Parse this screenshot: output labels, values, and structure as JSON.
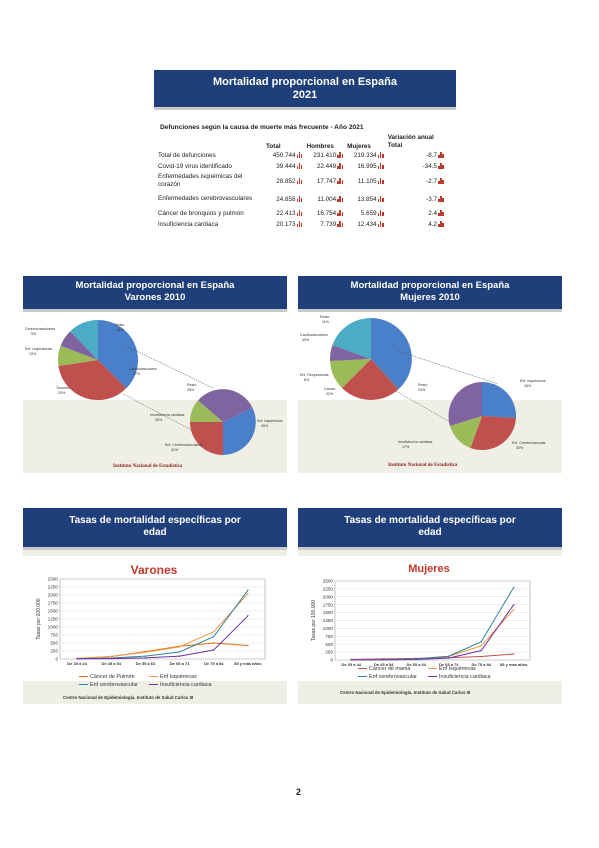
{
  "colors": {
    "header_blue": "#1f3f7a",
    "pie_blue": "#4a7fc9",
    "pie_red": "#c0504d",
    "pie_green": "#9bbb59",
    "pie_purple": "#8064a2",
    "pie_cyan": "#4bacc6",
    "accent_red": "#c0392b"
  },
  "slide1": {
    "title_line1": "Mortalidad proporcional en España",
    "title_line2": "2021",
    "subtitle": "Defunciones según la causa de muerte más frecuente - Año 2021",
    "headers": {
      "total": "Total",
      "men": "Hombres",
      "women": "Mujeres",
      "variation_1": "Variación anual",
      "variation_2": "Total"
    },
    "rows": [
      {
        "cause": "Total de defunciones",
        "total": "450.744",
        "men": "231.410",
        "women": "219.334",
        "var": "-8.7"
      },
      {
        "cause": "Covid-19 virus identificado",
        "total": "39.444",
        "men": "22.449",
        "women": "16.995",
        "var": "-34.5"
      },
      {
        "cause": "Enfermedades isquémicas del corazón",
        "total": "28.852",
        "men": "17.747",
        "women": "11.105",
        "var": "-2.7"
      },
      {
        "cause": "Enfermedades cerebrovasculares",
        "total": "24.858",
        "men": "11.004",
        "women": "13.854",
        "var": "-3.7"
      },
      {
        "cause": "Cáncer de bronquios y pulmón",
        "total": "22.413",
        "men": "16.754",
        "women": "5.659",
        "var": "2.4"
      },
      {
        "cause": "Insuficiencia cardiaca",
        "total": "20.173",
        "men": "7.739",
        "women": "12.434",
        "var": "4.2"
      }
    ]
  },
  "slide2": {
    "title_line1": "Mortalidad proporcional en España",
    "title_line2": "Varones 2010",
    "source": "Instituto Nacional de Estadística",
    "main_labels": {
      "resto": "Resto",
      "cardio": "Cardiovasculares",
      "tumores": "Tumores",
      "resp": "Enf. respiratorias",
      "cerebro": "Cerebrovasculares"
    },
    "main_values": {
      "resto": "11%",
      "cardio": "37%",
      "tumores": "33%",
      "resp": "10%",
      "cerebro": "9%"
    },
    "sub_labels": {
      "resto": "Resto",
      "isq": "Enf. isquémicas",
      "cvasc": "Enf. Cerebrovasculares",
      "insuf": "Insuficiencia cardiaca"
    },
    "sub_values": {
      "resto": "26%",
      "isq": "40%",
      "cvasc": "31%",
      "insuf": "26%"
    }
  },
  "slide3": {
    "title_line1": "Mortalidad proporcional en España",
    "title_line2": "Mujeres 2010",
    "source": "Instituto Nacional de Estadística",
    "main_labels": {
      "resto": "Resto",
      "cardio": "Cardiovasculares",
      "resp": "Enf. Respiratorias",
      "cancer": "Cancer"
    },
    "main_values": {
      "resto": "11%",
      "cardio": "45%",
      "resp": "8%",
      "cancer": "22%"
    },
    "sub_labels": {
      "resto": "Resto",
      "isq": "Enf. Isquémicas",
      "insuf": "Insuficiencia cardiaca",
      "cvasc": "Enf. Cerebrovascular"
    },
    "sub_values": {
      "resto": "34%",
      "isq": "28%",
      "insuf": "17%",
      "cvasc": "30%"
    }
  },
  "slide4": {
    "title_line1": "Tasas de mortalidad específicas por",
    "title_line2": "edad",
    "source": "Centro Nacional de Epidemiología. Instituto de Salud Carlos III"
  },
  "slide5": {
    "title_line1": "Tasas de mortalidad específicas por",
    "title_line2": "edad",
    "source": "Centro Nacional de Epidemiología. Instituto de Salud Carlos III"
  },
  "page_number": "2",
  "chart_data": [
    {
      "type": "line",
      "title": "Varones",
      "ylabel": "Tasas por 100.000",
      "categories": [
        "De 35 a 44",
        "De 45 a 54",
        "De 55 a 64",
        "De 65 a 74",
        "De 75 a 84",
        "85 y más años"
      ],
      "ylim": [
        0,
        2500
      ],
      "yticks": [
        "0",
        "250",
        "500",
        "750",
        "1000",
        "1250",
        "1500",
        "1750",
        "2000",
        "2250",
        "2500"
      ],
      "series": [
        {
          "name": "Cáncer de Pulmón",
          "color": "#e46c0a",
          "values": [
            15,
            80,
            230,
            400,
            500,
            420
          ]
        },
        {
          "name": "Enf Isquémicas",
          "color": "#f79646",
          "values": [
            20,
            80,
            210,
            380,
            850,
            2050
          ]
        },
        {
          "name": "Enf cerebrovascular",
          "color": "#31869b",
          "values": [
            8,
            30,
            90,
            220,
            700,
            2150
          ]
        },
        {
          "name": "Insuficiencia cardiaca",
          "color": "#7030a0",
          "values": [
            3,
            10,
            35,
            90,
            280,
            1350
          ]
        }
      ]
    },
    {
      "type": "line",
      "title": "Mujeres",
      "ylabel": "Tasas por 100.000",
      "categories": [
        "De 35 a 44",
        "De 45 a 54",
        "De 55 a 64",
        "De 65 a 74",
        "De 75 a 84",
        "85 y más años"
      ],
      "ylim": [
        0,
        2500
      ],
      "yticks": [
        "0",
        "250",
        "500",
        "750",
        "1000",
        "1250",
        "1500",
        "1750",
        "2000",
        "2250",
        "2500"
      ],
      "series": [
        {
          "name": "Cáncer de mama",
          "color": "#c0504d",
          "values": [
            20,
            35,
            50,
            70,
            110,
            190
          ]
        },
        {
          "name": "Enf Isquémicas",
          "color": "#f79646",
          "values": [
            3,
            15,
            40,
            110,
            450,
            1600
          ]
        },
        {
          "name": "Enf cerebrovascular",
          "color": "#31869b",
          "values": [
            3,
            12,
            40,
            120,
            580,
            2300
          ]
        },
        {
          "name": "Insuficiencia cardiaca",
          "color": "#7030a0",
          "values": [
            1,
            5,
            15,
            60,
            300,
            1750
          ]
        }
      ]
    }
  ]
}
